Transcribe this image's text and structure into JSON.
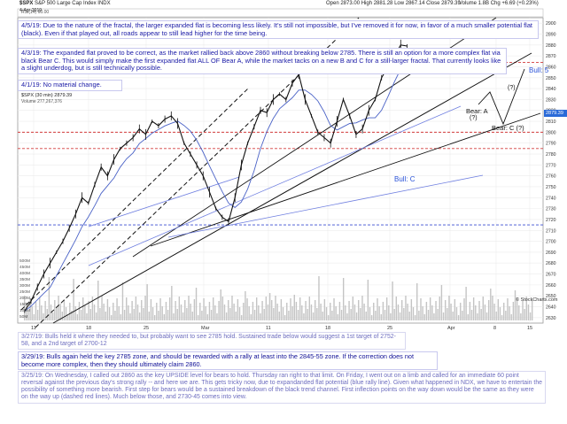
{
  "header": {
    "ticker": "$SPX",
    "name": "S&P 500 Large Cap Index",
    "exchange": "INDX",
    "date": "4-Apr-2019",
    "ohlc": "Open 2873.00  High 2881.28  Low 2867.14  Close 2879.39",
    "volume": "Volume 1.8B  Chg +6.69 (+0.23%)",
    "rsi": "RSI(14) 60.00",
    "price_label": "$SPX (30 min) 2879.39",
    "volume_label": "Volume 277,267,376",
    "watermark": "© StockCharts.com"
  },
  "notes": {
    "apr5": "4/5/19:  Due to the nature of the fractal, the larger expanded flat is becoming less likely.  It's still not impossible, but I've removed it for now, in favor of a much smaller potential flat (black).  Even if that played out, all roads appear to still lead higher for the time being.",
    "apr3": "4/3/19:  The expanded flat proved to be correct, as the market rallied back above 2860 without breaking below 2785.  There is still an option for a more complex flat via black Bear C.  This would simply make the first expanded flat ALL OF Bear A, while the market tacks on a new B and C for a still-larger fractal.  That currently looks like a slight underdog, but is still technically possible.",
    "apr1": "4/1/19:  No material change.",
    "mar27": "3/27/19:  Bulls held it where they needed to, but probably want to see 2785 hold.  Sustained trade below would suggest a 1st target of 2752-58, and a 2nd target of 2700-12",
    "mar29": "3/29/19:  Bulls again held the key 2785 zone, and should be rewarded with a rally at least into the 2845-55 zone.  If the correction does not become more complex, then they should ultimately claim 2860.",
    "mar25": "3/25/19:  On Wednesday, I called out 2860 as the key UPSIDE level for bears to hold.  Thursday ran right to that limit.  On Friday, I went out on a limb and called for an immediate 60 point reversal against the previous day's strong rally -- and here we are.  This gets tricky now, due to expandanded flat potential (blue rally line).  Given what happened in NDX, we have to entertain the possibility of something more bearish.  First step for bears would be a sustained breakdown of the black trend channel.  First inflection points on the way down would be the same as they were on the way up (dashed red lines).  Much below those, and 2730-45 comes into view."
  },
  "waves": {
    "bull5": "Bull: 5",
    "bearA": "Bear: A",
    "bearC": "Bear: C (?)",
    "bullC": "Bull: C",
    "q1": "(?)",
    "q2": "(?)"
  },
  "colors": {
    "price": "#111111",
    "ma": "#4b63c7",
    "channel_black": "#111111",
    "channel_blue": "#6f7fe0",
    "dashed_red": "#d23b3b",
    "dashed_blue": "#3b4fd2",
    "volume": "#b8b8b8",
    "note_text": "#1a1aa6",
    "wave_text": "#2a53d8"
  },
  "chart_data": {
    "type": "line",
    "title": "$SPX (30 min) 2879.39",
    "xlabel": "",
    "ylabel": "",
    "ylim": [
      2625,
      2905
    ],
    "y_ticks": [
      2900,
      2890,
      2880,
      2870,
      2860,
      2850,
      2840,
      2830,
      2820,
      2810,
      2800,
      2790,
      2780,
      2770,
      2760,
      2750,
      2740,
      2730,
      2720,
      2710,
      2700,
      2690,
      2680,
      2670,
      2660,
      2650,
      2640,
      2630
    ],
    "x_ticks": [
      "11",
      "18",
      "25",
      "Mar",
      "11",
      "18",
      "25",
      "Apr",
      "8",
      "15"
    ],
    "volume_ticks": [
      "500M",
      "450M",
      "400M",
      "350M",
      "300M",
      "250M",
      "200M",
      "150M",
      "100M",
      "50M"
    ],
    "reference_levels": [
      {
        "value": 2785,
        "style": "dashed",
        "color": "red"
      },
      {
        "value": 2800,
        "style": "dashed",
        "color": "red"
      },
      {
        "value": 2715,
        "style": "dashed",
        "color": "blue"
      },
      {
        "value": 2864,
        "style": "dashed",
        "color": "red"
      }
    ],
    "series": [
      {
        "x": [
          0,
          2,
          4,
          6,
          8,
          10,
          12,
          14,
          16,
          18,
          20,
          22,
          24,
          26,
          28,
          30,
          32,
          34,
          36,
          38,
          40,
          42,
          44,
          46,
          48,
          50,
          52,
          54,
          56,
          58,
          60,
          62,
          64,
          66,
          68,
          70,
          72,
          74,
          76,
          78,
          80,
          82,
          84,
          86,
          88,
          90,
          92,
          94,
          96,
          98,
          100,
          102,
          104,
          106,
          108,
          110,
          112,
          114,
          116,
          118,
          120
        ],
        "values": [
          2636,
          2645,
          2658,
          2670,
          2680,
          2690,
          2700,
          2712,
          2725,
          2740,
          2735,
          2752,
          2768,
          2760,
          2775,
          2785,
          2790,
          2795,
          2803,
          2798,
          2810,
          2806,
          2812,
          2815,
          2808,
          2790,
          2780,
          2770,
          2760,
          2745,
          2730,
          2722,
          2718,
          2740,
          2770,
          2790,
          2805,
          2820,
          2818,
          2830,
          2835,
          2830,
          2845,
          2853,
          2830,
          2815,
          2800,
          2795,
          2790,
          2810,
          2830,
          2815,
          2798,
          2803,
          2820,
          2830,
          2850,
          2860,
          2870,
          2880,
          2879
        ]
      }
    ]
  }
}
